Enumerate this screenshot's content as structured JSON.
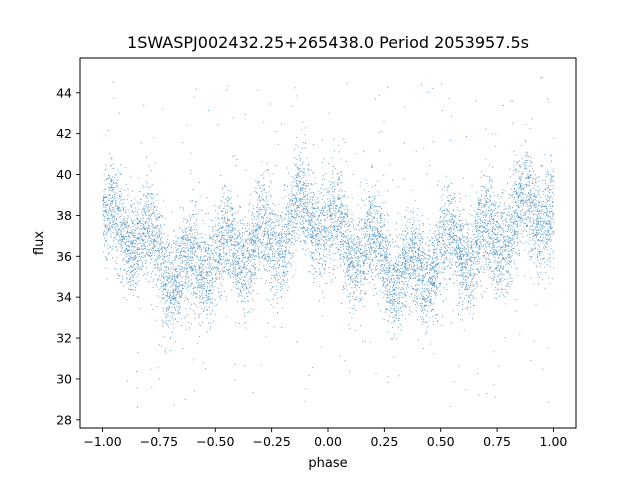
{
  "chart_data": {
    "type": "scatter",
    "title": "1SWASPJ002432.25+265438.0 Period 2053957.5s",
    "xlabel": "phase",
    "ylabel": "flux",
    "xlim": [
      -1.1,
      1.1
    ],
    "ylim": [
      27.6,
      45.7
    ],
    "xticks": [
      -1.0,
      -0.75,
      -0.5,
      -0.25,
      0.0,
      0.25,
      0.5,
      0.75,
      1.0
    ],
    "xtick_labels": [
      "−1.00",
      "−0.75",
      "−0.50",
      "−0.25",
      "0.00",
      "0.25",
      "0.50",
      "0.75",
      "1.00"
    ],
    "yticks": [
      28,
      30,
      32,
      34,
      36,
      38,
      40,
      42,
      44
    ],
    "ytick_labels": [
      "28",
      "30",
      "32",
      "34",
      "36",
      "38",
      "40",
      "42",
      "44"
    ],
    "grid": false,
    "legend": "none",
    "marker_color": "#1f77b4",
    "series": [
      {
        "phase_range": [
          -1.0,
          1.0
        ],
        "profile": {
          "x": [
            -1.0,
            -0.95,
            -0.9,
            -0.85,
            -0.8,
            -0.75,
            -0.7,
            -0.65,
            -0.6,
            -0.55,
            -0.5,
            -0.45,
            -0.4,
            -0.35,
            -0.3,
            -0.25,
            -0.2,
            -0.15,
            -0.1,
            -0.05,
            0.0,
            0.05,
            0.1,
            0.15,
            0.2,
            0.25,
            0.3,
            0.35,
            0.4,
            0.45,
            0.5,
            0.55,
            0.6,
            0.65,
            0.7,
            0.75,
            0.8,
            0.85,
            0.9,
            0.95,
            1.0
          ],
          "y": [
            38.0,
            37.3,
            37.2,
            37.0,
            36.6,
            36.1,
            35.2,
            35.0,
            35.5,
            35.8,
            35.9,
            36.2,
            36.5,
            36.3,
            36.6,
            36.8,
            37.2,
            37.8,
            38.2,
            38.0,
            37.5,
            37.0,
            36.6,
            36.5,
            36.4,
            36.0,
            35.2,
            35.0,
            35.4,
            35.8,
            36.0,
            36.3,
            36.5,
            36.4,
            36.8,
            37.0,
            37.3,
            37.8,
            38.3,
            38.3,
            38.0
          ]
        },
        "typical_scatter": 1.2,
        "outlier_range": [
          28.5,
          44.8
        ]
      }
    ]
  }
}
